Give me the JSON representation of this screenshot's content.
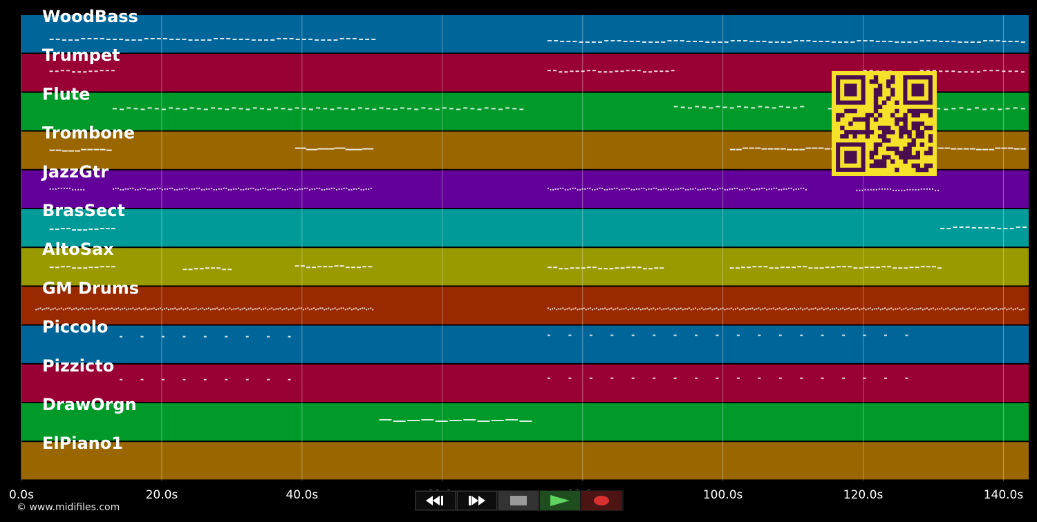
{
  "tracks": [
    {
      "name": "WoodBass",
      "color": "#00669a"
    },
    {
      "name": "Trumpet",
      "color": "#990033"
    },
    {
      "name": "Flute",
      "color": "#009a2a"
    },
    {
      "name": "Trombone",
      "color": "#996600"
    },
    {
      "name": "JazzGtr",
      "color": "#630099"
    },
    {
      "name": "BrasSect",
      "color": "#009a99"
    },
    {
      "name": "AltoSax",
      "color": "#999900"
    },
    {
      "name": "GM Drums",
      "color": "#992a00"
    },
    {
      "name": "Piccolo",
      "color": "#00669a"
    },
    {
      "name": "Pizzicto",
      "color": "#990033"
    },
    {
      "name": "DrawOrgn",
      "color": "#009a2a"
    },
    {
      "name": "ElPiano1",
      "color": "#996600"
    }
  ],
  "timeline": {
    "ticks": [
      "0.0s",
      "20.0s",
      "40.0s",
      "60.0s",
      "80.0s",
      "100.0s",
      "120.0s",
      "140.0s"
    ],
    "tick_seconds": [
      0,
      20,
      40,
      60,
      80,
      100,
      120,
      140
    ],
    "max_seconds": 143.6
  },
  "copyright": "© www.midifiles.com",
  "transport": {
    "buttons": [
      {
        "icon": "rewind-icon"
      },
      {
        "icon": "fast-forward-icon"
      },
      {
        "icon": "stop-icon"
      },
      {
        "icon": "play-icon"
      },
      {
        "icon": "record-icon"
      }
    ],
    "play_color": "#5fd35f",
    "record_color": "#d93030"
  },
  "qr_overlay": {
    "fg": "#f5e12a",
    "bg": "#4a0d4d"
  }
}
